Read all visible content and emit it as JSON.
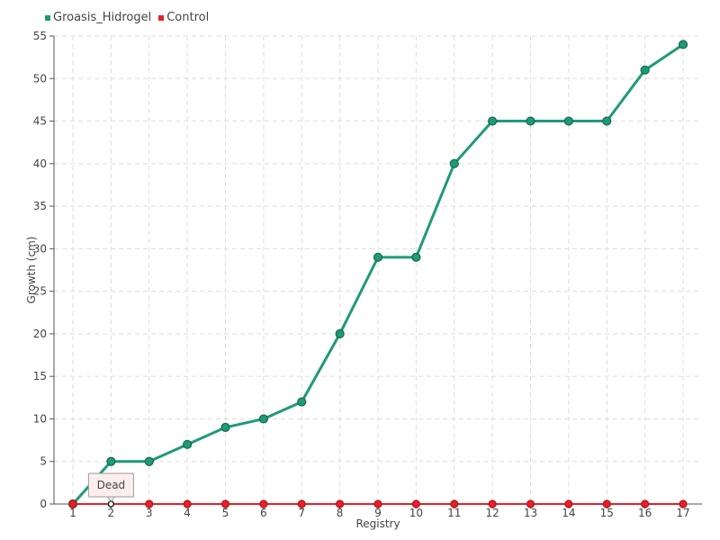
{
  "chart_data": {
    "type": "line",
    "title": "",
    "xlabel": "Registry",
    "ylabel": "Growth (cm)",
    "categories": [
      "1",
      "2",
      "3",
      "4",
      "5",
      "6",
      "7",
      "8",
      "9",
      "10",
      "11",
      "12",
      "13",
      "14",
      "15",
      "16",
      "17"
    ],
    "ylim": [
      0,
      55
    ],
    "yticks": [
      0,
      5,
      10,
      15,
      20,
      25,
      30,
      35,
      40,
      45,
      50,
      55
    ],
    "grid": true,
    "legend_position": "top-left",
    "series": [
      {
        "name": "Groasis_Hidrogel",
        "color": "#1f9a78",
        "values": [
          0,
          5,
          5,
          7,
          9,
          10,
          12,
          20,
          29,
          29,
          40,
          45,
          45,
          45,
          45,
          51,
          54
        ]
      },
      {
        "name": "Control",
        "color": "#e8202a",
        "values": [
          0,
          0,
          0,
          0,
          0,
          0,
          0,
          0,
          0,
          0,
          0,
          0,
          0,
          0,
          0,
          0,
          0
        ]
      }
    ],
    "annotations": [
      {
        "text": "Dead",
        "series": "Control",
        "category": "2"
      }
    ]
  }
}
